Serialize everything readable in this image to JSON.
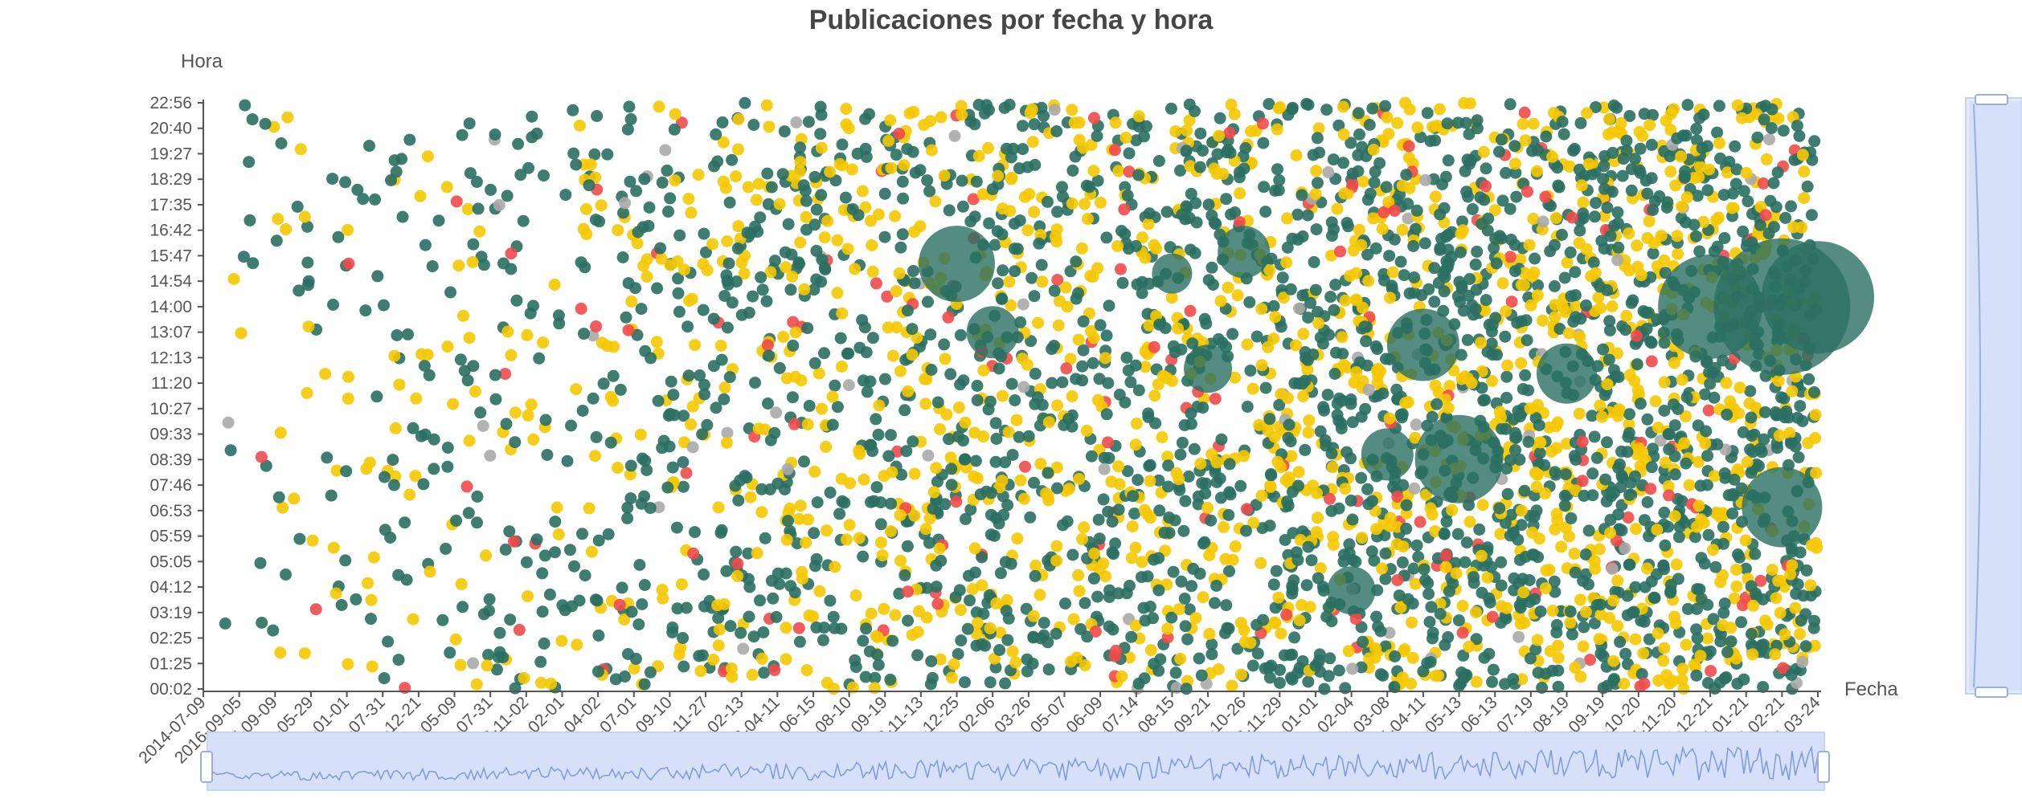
{
  "chart_data": {
    "type": "scatter",
    "title": "Publicaciones por fecha y hora",
    "xlabel": "Fecha",
    "ylabel": "Hora",
    "y_ticks": [
      "00:02",
      "01:25",
      "02:25",
      "03:19",
      "04:12",
      "05:05",
      "05:59",
      "06:53",
      "07:46",
      "08:39",
      "09:33",
      "10:27",
      "11:20",
      "12:13",
      "13:07",
      "14:00",
      "14:54",
      "15:47",
      "16:42",
      "17:35",
      "18:29",
      "19:27",
      "20:40",
      "22:56"
    ],
    "x_ticks": [
      "2014-07-09",
      "2016-09-05",
      "2017-09-09",
      "2018-05-29",
      "2019-01-01",
      "2019-07-31",
      "2019-12-21",
      "2020-05-09",
      "2020-07-31",
      "2020-11-02",
      "2021-02-01",
      "2021-04-02",
      "2021-07-01",
      "2021-09-10",
      "2021-11-27",
      "2022-02-13",
      "2022-04-11",
      "2022-06-15",
      "2022-08-10",
      "2022-09-19",
      "2022-11-13",
      "2022-12-25",
      "2023-02-06",
      "2023-03-26",
      "2023-05-07",
      "2023-06-09",
      "2023-07-14",
      "2023-08-15",
      "2023-09-21",
      "2023-10-26",
      "2023-11-29",
      "2024-01-01",
      "2024-02-04",
      "2024-03-08",
      "2024-04-11",
      "2024-05-13",
      "2024-06-13",
      "2024-07-19",
      "2024-08-19",
      "2024-09-19",
      "2024-10-20",
      "2024-11-20",
      "2024-12-21",
      "2025-01-21",
      "2025-02-21",
      "2025-03-24"
    ],
    "grid": false,
    "colors": {
      "teal": "#2a6f62",
      "yellow": "#f5c800",
      "red": "#f04a4a",
      "gray": "#aaaaaa"
    },
    "series": [
      {
        "color": "#2a6f62",
        "values": []
      },
      {
        "color": "#f5c800",
        "values": []
      },
      {
        "color": "#f04a4a",
        "values": []
      }
    ],
    "bubbles": [
      {
        "x": "2022-12-25",
        "y": "15:30",
        "color": "#2a6f62",
        "size": 95
      },
      {
        "x": "2023-02-06",
        "y": "13:07",
        "color": "#2a6f62",
        "size": 65
      },
      {
        "x": "2023-08-15",
        "y": "15:10",
        "color": "#2a6f62",
        "size": 50
      },
      {
        "x": "2023-10-26",
        "y": "15:55",
        "color": "#2a6f62",
        "size": 65
      },
      {
        "x": "2023-09-21",
        "y": "11:50",
        "color": "#2a6f62",
        "size": 60
      },
      {
        "x": "2024-04-11",
        "y": "12:40",
        "color": "#2a6f62",
        "size": 90
      },
      {
        "x": "2024-05-13",
        "y": "08:40",
        "color": "#2a6f62",
        "size": 110
      },
      {
        "x": "2024-03-08",
        "y": "08:50",
        "color": "#2a6f62",
        "size": 65
      },
      {
        "x": "2024-02-04",
        "y": "04:05",
        "color": "#2a6f62",
        "size": 60
      },
      {
        "x": "2024-08-19",
        "y": "11:40",
        "color": "#2a6f62",
        "size": 75
      },
      {
        "x": "2024-12-21",
        "y": "14:00",
        "color": "#2a6f62",
        "size": 130
      },
      {
        "x": "2025-02-21",
        "y": "14:00",
        "color": "#2a6f62",
        "size": 170
      },
      {
        "x": "2025-03-24",
        "y": "14:20",
        "color": "#2a6f62",
        "size": 140
      },
      {
        "x": "2025-02-21",
        "y": "07:00",
        "color": "#2a6f62",
        "size": 100
      }
    ]
  },
  "zoom_slider": {
    "x_start": "2014-07-09",
    "x_end": "2025-03-24"
  },
  "y_slider": {
    "y_start": "00:02",
    "y_end": "22:56"
  }
}
